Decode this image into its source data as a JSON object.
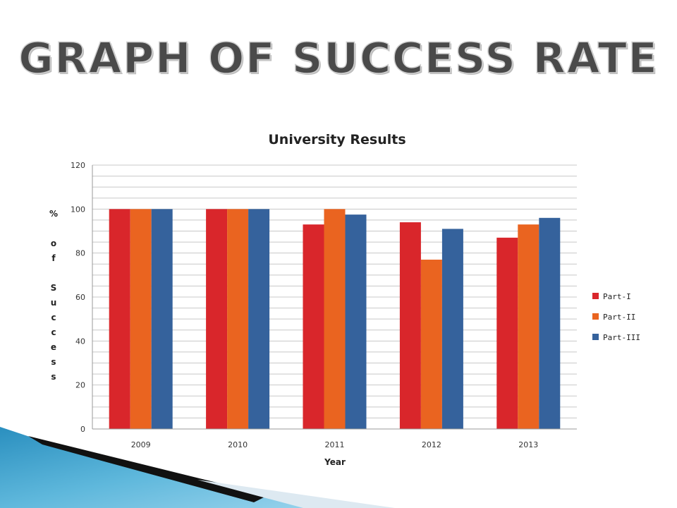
{
  "slide": {
    "title": "GRAPH OF SUCCESS RATE"
  },
  "chart_data": {
    "type": "bar",
    "title": "University Results",
    "xlabel": "Year",
    "ylabel": "% of Success",
    "ylim": [
      0,
      120
    ],
    "yticks": [
      0,
      20,
      40,
      60,
      80,
      100,
      120
    ],
    "grid": true,
    "legend_position": "right",
    "categories": [
      "2009",
      "2010",
      "2011",
      "2012",
      "2013"
    ],
    "series": [
      {
        "name": "Part-I",
        "color": "#d9262b",
        "values": [
          100,
          100,
          93,
          94,
          87
        ]
      },
      {
        "name": "Part-II",
        "color": "#ea6420",
        "values": [
          100,
          100,
          100,
          77,
          93
        ]
      },
      {
        "name": "Part-III",
        "color": "#35629c",
        "values": [
          100,
          100,
          97.5,
          91,
          96
        ]
      }
    ]
  }
}
